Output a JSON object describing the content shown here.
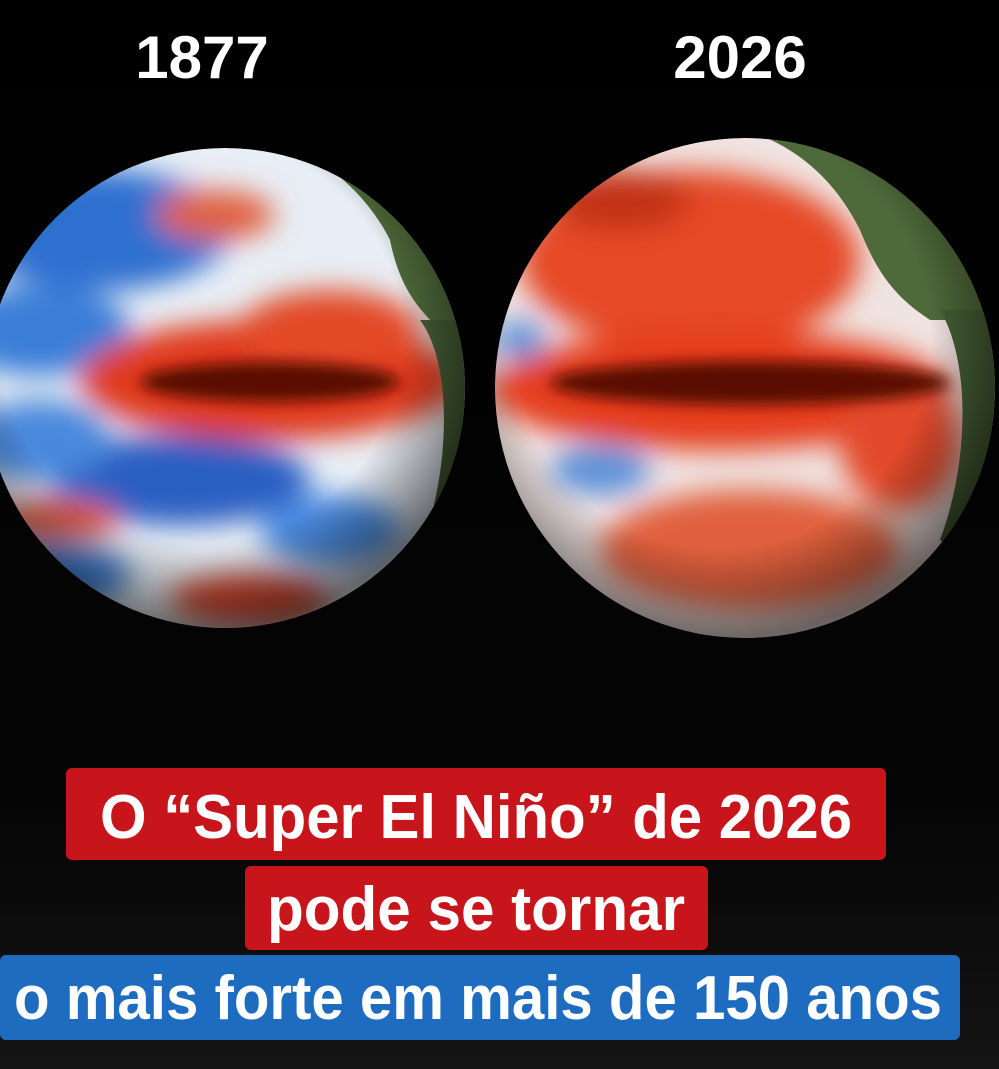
{
  "labels": {
    "left": "1877",
    "right": "2026"
  },
  "caption": {
    "lines": [
      "O “Super El Niño” de 2026",
      "pode se tornar",
      "o mais forte em mais de 150 anos"
    ]
  }
}
